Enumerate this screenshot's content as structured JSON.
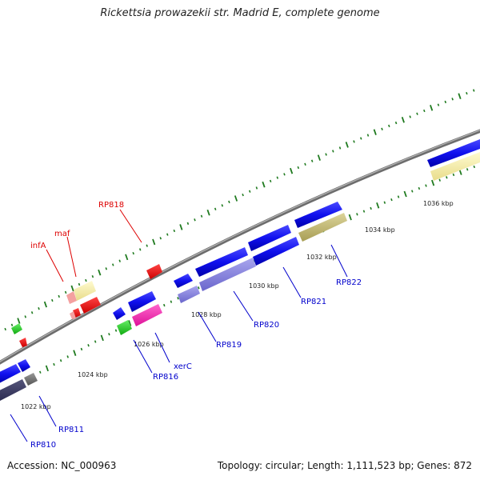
{
  "title": "Rickettsia prowazekii str. Madrid E, complete genome",
  "footer": {
    "accession": "Accession: NC_000963",
    "stats": "Topology: circular; Length: 1,111,523 bp; Genes: 872"
  },
  "tick_labels": [
    "1022 kbp",
    "1024 kbp",
    "1026 kbp",
    "1028 kbp",
    "1030 kbp",
    "1032 kbp",
    "1034 kbp",
    "1036 kbp"
  ],
  "gene_labels": [
    {
      "name": "RP810",
      "color": "#0000cc"
    },
    {
      "name": "RP811",
      "color": "#0000cc"
    },
    {
      "name": "RP816",
      "color": "#0000cc"
    },
    {
      "name": "xerC",
      "color": "#0000cc"
    },
    {
      "name": "RP819",
      "color": "#0000cc"
    },
    {
      "name": "RP820",
      "color": "#0000cc"
    },
    {
      "name": "RP821",
      "color": "#0000cc"
    },
    {
      "name": "RP822",
      "color": "#0000cc"
    },
    {
      "name": "infA",
      "color": "#dd0000"
    },
    {
      "name": "maf",
      "color": "#dd0000"
    },
    {
      "name": "RP818",
      "color": "#dd0000"
    }
  ],
  "colors": {
    "backbone": "#7a7a7a",
    "tick_green": "#1f7a1f",
    "label_blue": "#0000cc",
    "label_red": "#dd0000"
  }
}
